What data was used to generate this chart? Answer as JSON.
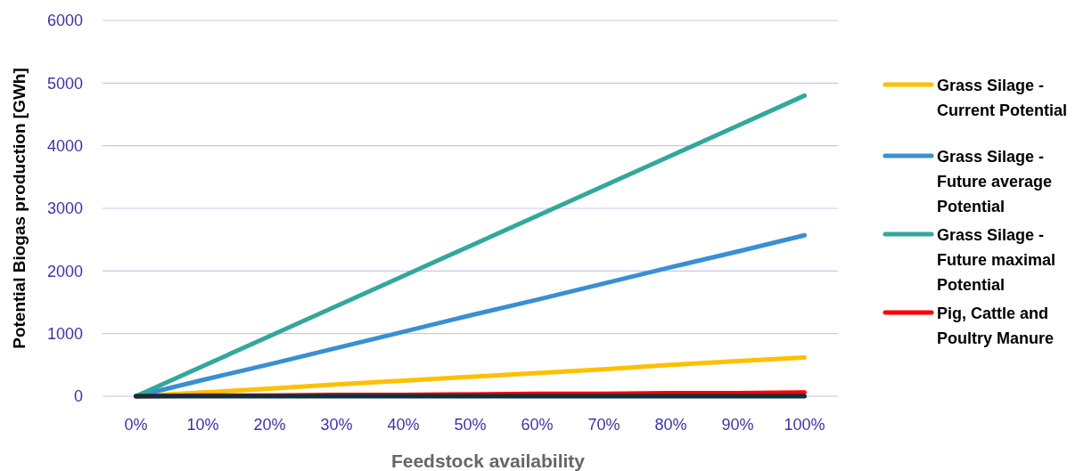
{
  "chart_data": {
    "type": "line",
    "xlabel": "Feedstock availability",
    "ylabel": "Potential Biogas production [GWh]",
    "categories": [
      "0%",
      "10%",
      "20%",
      "30%",
      "40%",
      "50%",
      "60%",
      "70%",
      "80%",
      "90%",
      "100%"
    ],
    "series": [
      {
        "name": "Grass Silage - Current Potential",
        "color": "#ffc000",
        "values": [
          0,
          60,
          120,
          190,
          250,
          310,
          370,
          430,
          500,
          560,
          620
        ]
      },
      {
        "name": "Grass Silage - Future average Potential",
        "color": "#3a8fd3",
        "values": [
          0,
          260,
          510,
          770,
          1030,
          1290,
          1540,
          1800,
          2060,
          2310,
          2570
        ]
      },
      {
        "name": "Grass Silage - Future maximal Potential",
        "color": "#33a89a",
        "values": [
          0,
          480,
          960,
          1440,
          1920,
          2400,
          2880,
          3360,
          3840,
          4320,
          4800
        ]
      },
      {
        "name": "Pig, Cattle and Poultry Manure",
        "color": "#ff0000",
        "values": [
          0,
          10,
          10,
          20,
          20,
          30,
          40,
          40,
          50,
          50,
          60
        ]
      },
      {
        "color": "#0b3040",
        "values": [
          0,
          0,
          0,
          0,
          0,
          0,
          0,
          0,
          0,
          0,
          0
        ]
      }
    ],
    "ylim": [
      0,
      6000
    ],
    "yticks": [
      0,
      1000,
      2000,
      3000,
      4000,
      5000,
      6000
    ],
    "grid": "y",
    "legend": "right",
    "marker": "none",
    "line_style": "solid"
  }
}
